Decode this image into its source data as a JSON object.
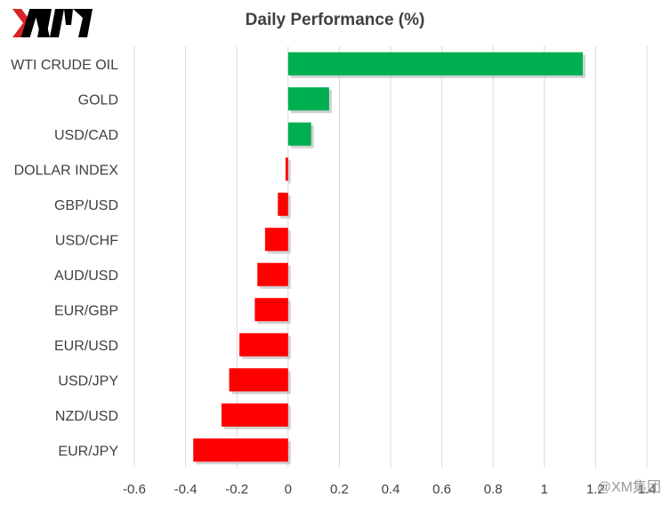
{
  "logo": {
    "text": "XM",
    "accent": "#d8232a"
  },
  "watermark": "@XM集团",
  "chart_data": {
    "type": "bar",
    "orientation": "horizontal",
    "title": "Daily Performance  (%)",
    "categories": [
      "WTI CRUDE OIL",
      "GOLD",
      "USD/CAD",
      "DOLLAR INDEX",
      "GBP/USD",
      "USD/CHF",
      "AUD/USD",
      "EUR/GBP",
      "EUR/USD",
      "USD/JPY",
      "NZD/USD",
      "EUR/JPY"
    ],
    "values": [
      1.15,
      0.16,
      0.09,
      -0.01,
      -0.04,
      -0.09,
      -0.12,
      -0.13,
      -0.19,
      -0.23,
      -0.26,
      -0.37
    ],
    "xlim": [
      -0.6,
      1.4
    ],
    "xticks": [
      -0.6,
      -0.4,
      -0.2,
      0,
      0.2,
      0.4,
      0.6,
      0.8,
      1,
      1.2,
      1.4
    ],
    "xtick_labels": [
      "-0.6",
      "-0.4",
      "-0.2",
      "0",
      "0.2",
      "0.4",
      "0.6",
      "0.8",
      "1",
      "1.2",
      "1.4"
    ],
    "grid": "vertical",
    "legend": "none",
    "colors": {
      "positive": "#00b050",
      "negative": "#ff0000",
      "grid": "#d9d9d9",
      "text": "#404040"
    }
  }
}
